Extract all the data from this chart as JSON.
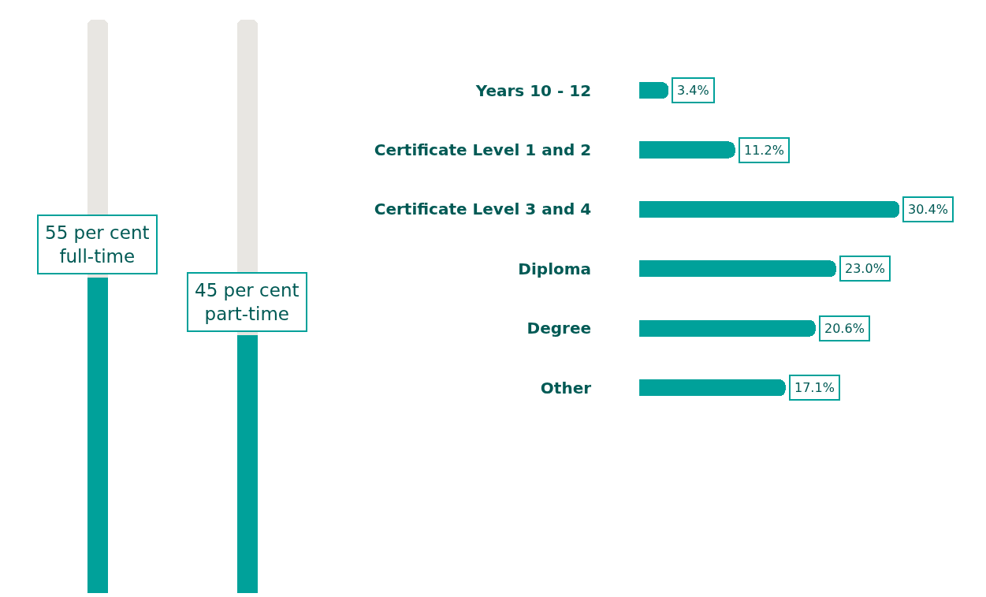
{
  "chart_data": [
    {
      "type": "bar",
      "categories": [
        null,
        null
      ],
      "stacked": true,
      "tick_labels": false,
      "series": [
        {
          "color": "#00a19a",
          "values": [
            55,
            45
          ],
          "value_labels": [
            "55 per cent\nfull-time",
            "45 per cent\npart-time"
          ]
        },
        {
          "color": "#e8e6e2",
          "values": [
            45,
            55
          ]
        }
      ]
    },
    {
      "type": "bar",
      "orientation": "horizontal",
      "categories": [
        "Years 10 - 12",
        "Certificate Level 1 and 2",
        "Certificate Level 3 and 4",
        "Diploma",
        "Degree",
        "Other"
      ],
      "tick_labels": "y",
      "series": [
        {
          "color": "#00a19a",
          "values": [
            3.4,
            11.2,
            30.4,
            23.0,
            20.6,
            17.1
          ],
          "value_labels": [
            "3.4%",
            "11.2%",
            "30.4%",
            "23.0%",
            "20.6%",
            "17.1%"
          ]
        }
      ]
    }
  ]
}
